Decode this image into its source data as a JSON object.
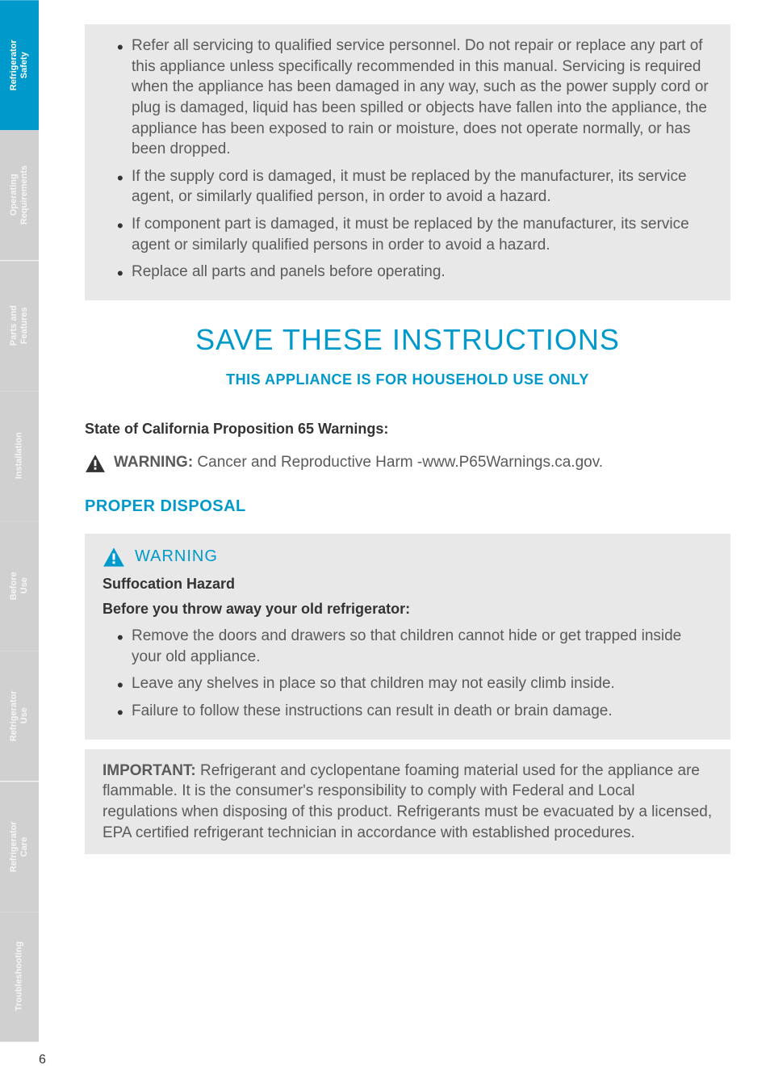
{
  "colors": {
    "brand_blue": "#0099cc",
    "sidebar_active": "#0099cc",
    "sidebar_inactive": "#d0d0d0",
    "graybox_bg": "#e8e8e8",
    "body_text": "#5a5a5a",
    "heading_text": "#333333",
    "page_bg": "#ffffff"
  },
  "typography": {
    "body_fontsize": 19,
    "h1_fontsize": 36,
    "h2_fontsize": 18,
    "h3_fontsize": 20,
    "sidebar_fontsize": 11
  },
  "sidebar": {
    "tabs": [
      {
        "line1": "Refrigerator",
        "line2": "Safety",
        "active": true
      },
      {
        "line1": "Operating",
        "line2": "Requirements",
        "active": false
      },
      {
        "line1": "Parts and",
        "line2": "Features",
        "active": false
      },
      {
        "line1": "Installation",
        "line2": "",
        "active": false
      },
      {
        "line1": "Before",
        "line2": "Use",
        "active": false
      },
      {
        "line1": "Refrigerator",
        "line2": "Use",
        "active": false
      },
      {
        "line1": "Refrigerator",
        "line2": "Care",
        "active": false
      },
      {
        "line1": "Troubleshooting",
        "line2": "",
        "active": false
      }
    ]
  },
  "box1": {
    "items": [
      "Refer all servicing to qualified service personnel. Do not repair or replace any part of this appliance unless specifically recommended in this manual. Servicing is required when the appliance has been damaged in any way, such as the power supply cord or plug is damaged, liquid has been spilled or objects have fallen into the appliance, the appliance has been exposed to rain or moisture, does not operate normally, or has been dropped.",
      "If the supply cord is damaged, it must be replaced by the manufacturer, its service agent, or similarly qualified person, in order to avoid a hazard.",
      "If component part is damaged, it must be replaced by the manufacturer, its service agent or similarly qualified persons in order to avoid a hazard.",
      "Replace all parts and panels before operating."
    ]
  },
  "save_heading": "SAVE THESE INSTRUCTIONS",
  "household_subhead": "THIS APPLIANCE IS FOR HOUSEHOLD USE ONLY",
  "prop65_heading": "State of California Proposition 65 Warnings:",
  "prop65_warning_bold": "WARNING:",
  "prop65_warning_rest": " Cancer and Reproductive Harm -www.P65Warnings.ca.gov.",
  "disposal_heading": "PROPER DISPOSAL",
  "warning_label": "WARNING",
  "suffocation_heading": "Suffocation Hazard",
  "before_throw_heading": "Before you throw away your old refrigerator:",
  "disposal_items": [
    "Remove the doors and drawers so that children cannot hide or get trapped inside your old appliance.",
    "Leave any shelves in place so that children may not easily climb inside.",
    "Failure to follow these instructions can result in death or brain damage."
  ],
  "important_bold": "IMPORTANT:",
  "important_rest": " Refrigerant and cyclopentane foaming material used for the appliance are flammable. It is the consumer's responsibility to comply with Federal and Local regulations when disposing of this product. Refrigerants must be evacuated by a licensed, EPA certified refrigerant technician in accordance with established procedures.",
  "page_number": "6"
}
